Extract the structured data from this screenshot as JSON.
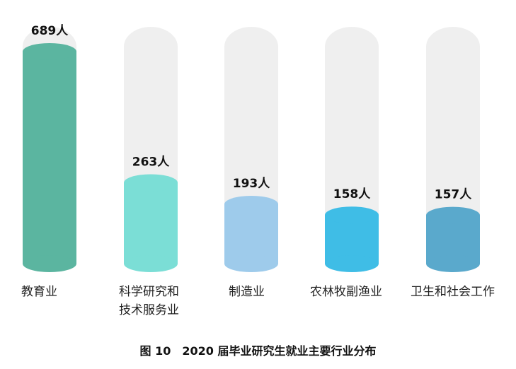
{
  "chart_data": {
    "type": "bar",
    "title": "图 10　2020 届毕业研究生就业主要行业分布",
    "unit": "人",
    "categories": [
      "教育业",
      "科学研究和技术服务业",
      "制造业",
      "农林牧副渔业",
      "卫生和社会工作"
    ],
    "category_lines": [
      [
        "教育业"
      ],
      [
        "科学研究和",
        "技术服务业"
      ],
      [
        "制造业"
      ],
      [
        "农林牧副渔业"
      ],
      [
        "卫生和社会工作"
      ]
    ],
    "values": [
      689,
      263,
      193,
      158,
      157
    ],
    "value_labels": [
      "689人",
      "263人",
      "193人",
      "158人",
      "157人"
    ],
    "ylim": [
      0,
      689
    ],
    "colors": [
      "#5bb5a0",
      "#7bded6",
      "#9ecbeb",
      "#3fbde6",
      "#5aa9cc"
    ],
    "track_color": "#efefef",
    "grid": false
  }
}
